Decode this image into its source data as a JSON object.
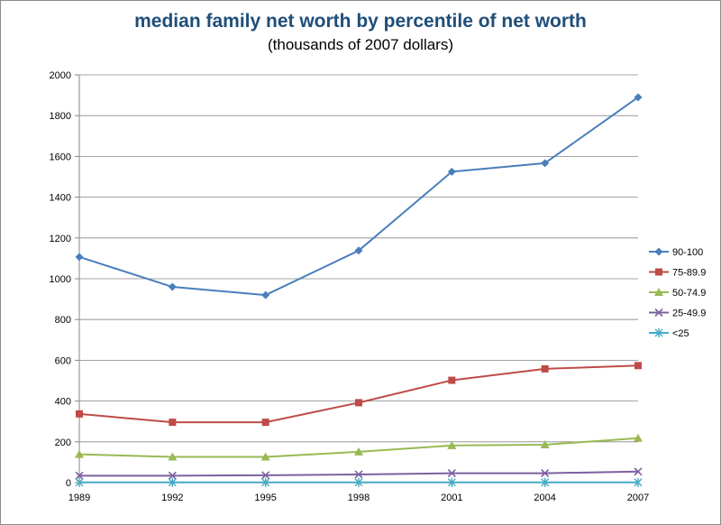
{
  "chart_data": {
    "type": "line",
    "title": "median family net worth by percentile of net worth",
    "subtitle": "(thousands of 2007 dollars)",
    "xlabel": "",
    "ylabel": "",
    "x": [
      "1989",
      "1992",
      "1995",
      "1998",
      "2001",
      "2004",
      "2007"
    ],
    "ylim": [
      0,
      2000
    ],
    "yticks": [
      0,
      200,
      400,
      600,
      800,
      1000,
      1200,
      1400,
      1600,
      1800,
      2000
    ],
    "grid": "horizontal",
    "legend_position": "right",
    "series": [
      {
        "name": "90-100",
        "color": "#4a7ebb",
        "marker": "diamond",
        "values": [
          1107,
          960,
          920,
          1138,
          1525,
          1567,
          1890
        ]
      },
      {
        "name": "75-89.9",
        "color": "#be4b48",
        "marker": "square",
        "values": [
          337,
          296,
          296,
          392,
          502,
          558,
          574
        ]
      },
      {
        "name": "50-74.9",
        "color": "#98b954",
        "marker": "triangle",
        "values": [
          139,
          126,
          126,
          151,
          182,
          186,
          218
        ]
      },
      {
        "name": "25-49.9",
        "color": "#7d60a0",
        "marker": "x",
        "values": [
          34,
          34,
          36,
          40,
          46,
          46,
          54
        ]
      },
      {
        "name": "<25",
        "color": "#46aac5",
        "marker": "star",
        "values": [
          1,
          1,
          1,
          1,
          1,
          1,
          1
        ]
      }
    ]
  }
}
